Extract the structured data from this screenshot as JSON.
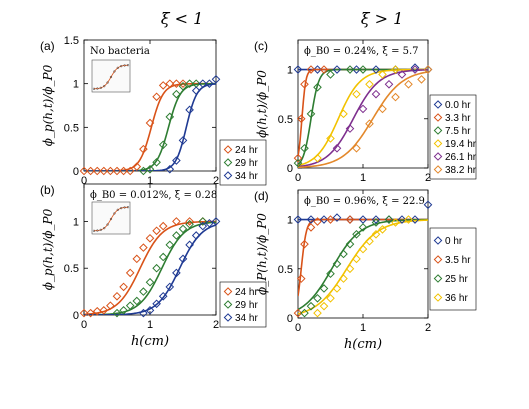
{
  "headers": {
    "left": "ξ < 1",
    "right": "ξ > 1"
  },
  "chart_data": [
    {
      "id": "a",
      "type": "line",
      "panel_label": "(a)",
      "annotation": "No bacteria",
      "ylabel": "ϕ_p(h,t)/ϕ_P0",
      "xlabel": "",
      "xlim": [
        0,
        2
      ],
      "ylim": [
        0,
        1.5
      ],
      "xticks": [
        "0",
        "1",
        "2"
      ],
      "yticks": [
        "0",
        "0.5",
        "1",
        "1.5"
      ],
      "legend_position": "bottom-right outside",
      "series": [
        {
          "name": "24 hr",
          "color": "#d95319",
          "x0": 1.02,
          "w": 0.09,
          "markers": [
            [
              0,
              0
            ],
            [
              0.1,
              0
            ],
            [
              0.2,
              0
            ],
            [
              0.3,
              0
            ],
            [
              0.4,
              0
            ],
            [
              0.5,
              0
            ],
            [
              0.6,
              0
            ],
            [
              0.7,
              0
            ],
            [
              0.8,
              0.05
            ],
            [
              0.9,
              0.25
            ],
            [
              1.0,
              0.55
            ],
            [
              1.1,
              0.85
            ],
            [
              1.2,
              0.98
            ],
            [
              1.3,
              1.0
            ],
            [
              1.4,
              1.0
            ],
            [
              1.5,
              1.0
            ]
          ]
        },
        {
          "name": "29 hr",
          "color": "#2e7d32",
          "x0": 1.28,
          "w": 0.09,
          "markers": [
            [
              0.9,
              0
            ],
            [
              1.0,
              0.02
            ],
            [
              1.1,
              0.1
            ],
            [
              1.2,
              0.3
            ],
            [
              1.3,
              0.62
            ],
            [
              1.4,
              0.88
            ],
            [
              1.5,
              0.97
            ],
            [
              1.6,
              1.0
            ],
            [
              1.7,
              1.0
            ]
          ]
        },
        {
          "name": "34 hr",
          "color": "#1f3a93",
          "x0": 1.55,
          "w": 0.08,
          "markers": [
            [
              1.3,
              0.02
            ],
            [
              1.4,
              0.12
            ],
            [
              1.5,
              0.35
            ],
            [
              1.6,
              0.7
            ],
            [
              1.7,
              0.92
            ],
            [
              1.8,
              1.0
            ],
            [
              1.9,
              1.0
            ],
            [
              2.0,
              1.05
            ]
          ]
        }
      ]
    },
    {
      "id": "b",
      "type": "line",
      "panel_label": "(b)",
      "annotation": "ϕ_B0 = 0.012%, ξ = 0.28",
      "ylabel": "ϕ_p(h,t)/ϕ_P0",
      "xlabel": "h(cm)",
      "xlim": [
        0,
        2
      ],
      "ylim": [
        0,
        1.4
      ],
      "xticks": [
        "0",
        "1",
        "2"
      ],
      "yticks": [
        "0",
        "0.5",
        "1"
      ],
      "legend_position": "bottom-right outside",
      "series": [
        {
          "name": "24 hr",
          "color": "#d95319",
          "x0": 0.85,
          "w": 0.17,
          "markers": [
            [
              0,
              0.02
            ],
            [
              0.1,
              0.02
            ],
            [
              0.2,
              0.04
            ],
            [
              0.3,
              0.05
            ],
            [
              0.4,
              0.1
            ],
            [
              0.5,
              0.2
            ],
            [
              0.6,
              0.3
            ],
            [
              0.7,
              0.45
            ],
            [
              0.8,
              0.6
            ],
            [
              0.9,
              0.72
            ],
            [
              1.0,
              0.82
            ],
            [
              1.1,
              0.9
            ],
            [
              1.2,
              0.95
            ],
            [
              1.4,
              1.0
            ],
            [
              1.6,
              1.0
            ],
            [
              1.8,
              1.0
            ]
          ]
        },
        {
          "name": "29 hr",
          "color": "#2e7d32",
          "x0": 1.18,
          "w": 0.17,
          "markers": [
            [
              0.5,
              0.02
            ],
            [
              0.6,
              0.05
            ],
            [
              0.7,
              0.1
            ],
            [
              0.8,
              0.15
            ],
            [
              0.9,
              0.25
            ],
            [
              1.0,
              0.35
            ],
            [
              1.1,
              0.5
            ],
            [
              1.2,
              0.62
            ],
            [
              1.3,
              0.75
            ],
            [
              1.4,
              0.85
            ],
            [
              1.5,
              0.92
            ],
            [
              1.6,
              0.97
            ],
            [
              1.8,
              1.0
            ]
          ]
        },
        {
          "name": "34 hr",
          "color": "#1f3a93",
          "x0": 1.45,
          "w": 0.17,
          "markers": [
            [
              0.9,
              0.02
            ],
            [
              1.0,
              0.05
            ],
            [
              1.1,
              0.12
            ],
            [
              1.2,
              0.2
            ],
            [
              1.3,
              0.3
            ],
            [
              1.4,
              0.45
            ],
            [
              1.5,
              0.6
            ],
            [
              1.6,
              0.75
            ],
            [
              1.7,
              0.85
            ],
            [
              1.8,
              0.95
            ],
            [
              1.9,
              0.98
            ],
            [
              2.0,
              1.0
            ]
          ]
        }
      ]
    },
    {
      "id": "c",
      "type": "line",
      "panel_label": "(c)",
      "annotation": "ϕ_B0 = 0.24%, ξ = 5.7",
      "ylabel": "ϕ(h,t)/ϕ_P0",
      "xlabel": "",
      "xlim": [
        0,
        2
      ],
      "ylim": [
        0,
        1.3
      ],
      "xticks": [
        "0",
        "1",
        "2"
      ],
      "yticks": [
        "0",
        "0.5",
        "1"
      ],
      "legend_position": "bottom-right outside",
      "series": [
        {
          "name": "0.0 hr",
          "color": "#1f3a93",
          "x0": -1,
          "w": 0.01,
          "markers": [
            [
              0,
              1.0
            ],
            [
              0.3,
              1.0
            ],
            [
              0.6,
              1.0
            ],
            [
              0.9,
              1.0
            ],
            [
              1.2,
              1.0
            ],
            [
              1.5,
              1.0
            ],
            [
              1.8,
              1.02
            ],
            [
              2.0,
              1.0
            ]
          ]
        },
        {
          "name": "3.3 hr",
          "color": "#d95319",
          "x0": 0.06,
          "w": 0.03,
          "markers": [
            [
              0,
              0.1
            ],
            [
              0.05,
              0.5
            ],
            [
              0.1,
              0.85
            ],
            [
              0.2,
              1.0
            ],
            [
              0.4,
              1.0
            ]
          ]
        },
        {
          "name": "7.5 hr",
          "color": "#2e7d32",
          "x0": 0.2,
          "w": 0.06,
          "markers": [
            [
              0,
              0.05
            ],
            [
              0.1,
              0.2
            ],
            [
              0.2,
              0.55
            ],
            [
              0.3,
              0.82
            ],
            [
              0.5,
              0.95
            ],
            [
              0.8,
              1.0
            ],
            [
              1.0,
              1.0
            ]
          ]
        },
        {
          "name": "19.4 hr",
          "color": "#f2c200",
          "x0": 0.62,
          "w": 0.17,
          "markers": [
            [
              0.3,
              0.1
            ],
            [
              0.5,
              0.3
            ],
            [
              0.7,
              0.55
            ],
            [
              0.9,
              0.75
            ],
            [
              1.1,
              0.85
            ],
            [
              1.3,
              0.95
            ],
            [
              1.5,
              1.0
            ]
          ]
        },
        {
          "name": "26.1 hr",
          "color": "#7e2f8e",
          "x0": 0.85,
          "w": 0.2,
          "markers": [
            [
              0.6,
              0.2
            ],
            [
              0.8,
              0.4
            ],
            [
              1.0,
              0.6
            ],
            [
              1.2,
              0.75
            ],
            [
              1.4,
              0.85
            ],
            [
              1.6,
              0.95
            ],
            [
              1.8,
              1.0
            ]
          ]
        },
        {
          "name": "38.2 hr",
          "color": "#e3882b",
          "x0": 1.15,
          "w": 0.23,
          "markers": [
            [
              0.9,
              0.2
            ],
            [
              1.1,
              0.45
            ],
            [
              1.3,
              0.6
            ],
            [
              1.5,
              0.72
            ],
            [
              1.7,
              0.85
            ],
            [
              1.9,
              0.9
            ],
            [
              2.0,
              1.0
            ]
          ]
        }
      ]
    },
    {
      "id": "d",
      "type": "line",
      "panel_label": "(d)",
      "annotation": "ϕ_B0 = 0.96%, ξ = 22.9",
      "ylabel": "ϕ_P(h,t)/ϕ_P0",
      "xlabel": "h(cm)",
      "xlim": [
        0,
        2
      ],
      "ylim": [
        0,
        1.3
      ],
      "xticks": [
        "0",
        "1",
        "2"
      ],
      "yticks": [
        "0",
        "0.5",
        "1"
      ],
      "legend_position": "bottom-right outside",
      "series": [
        {
          "name": "0 hr",
          "color": "#1f3a93",
          "x0": -1,
          "w": 0.01,
          "markers": [
            [
              0,
              1.0
            ],
            [
              0.2,
              1.0
            ],
            [
              0.4,
              1.0
            ],
            [
              0.6,
              1.02
            ],
            [
              0.8,
              1.0
            ],
            [
              1.0,
              1.0
            ],
            [
              1.2,
              1.0
            ],
            [
              1.4,
              1.0
            ],
            [
              1.6,
              1.0
            ],
            [
              1.8,
              1.0
            ],
            [
              2.0,
              1.15
            ]
          ]
        },
        {
          "name": "3.5 hr",
          "color": "#d95319",
          "x0": 0.05,
          "w": 0.04,
          "markers": [
            [
              0,
              0.05
            ],
            [
              0.05,
              0.4
            ],
            [
              0.1,
              0.75
            ],
            [
              0.2,
              0.92
            ],
            [
              0.3,
              0.98
            ],
            [
              0.5,
              1.0
            ],
            [
              0.8,
              1.0
            ]
          ]
        },
        {
          "name": "25 hr",
          "color": "#2e7d32",
          "x0": 0.52,
          "w": 0.22,
          "markers": [
            [
              0.1,
              0.05
            ],
            [
              0.2,
              0.12
            ],
            [
              0.3,
              0.2
            ],
            [
              0.4,
              0.3
            ],
            [
              0.5,
              0.45
            ],
            [
              0.6,
              0.55
            ],
            [
              0.7,
              0.65
            ],
            [
              0.8,
              0.75
            ],
            [
              0.9,
              0.85
            ],
            [
              1.0,
              0.92
            ],
            [
              1.2,
              0.97
            ],
            [
              1.4,
              1.0
            ]
          ]
        },
        {
          "name": "36 hr",
          "color": "#f2c200",
          "x0": 0.75,
          "w": 0.24,
          "markers": [
            [
              0.3,
              0.05
            ],
            [
              0.4,
              0.12
            ],
            [
              0.5,
              0.2
            ],
            [
              0.6,
              0.3
            ],
            [
              0.7,
              0.4
            ],
            [
              0.8,
              0.5
            ],
            [
              0.9,
              0.6
            ],
            [
              1.0,
              0.7
            ],
            [
              1.1,
              0.78
            ],
            [
              1.2,
              0.85
            ],
            [
              1.3,
              0.9
            ],
            [
              1.5,
              0.97
            ],
            [
              1.7,
              1.0
            ]
          ]
        }
      ]
    }
  ]
}
